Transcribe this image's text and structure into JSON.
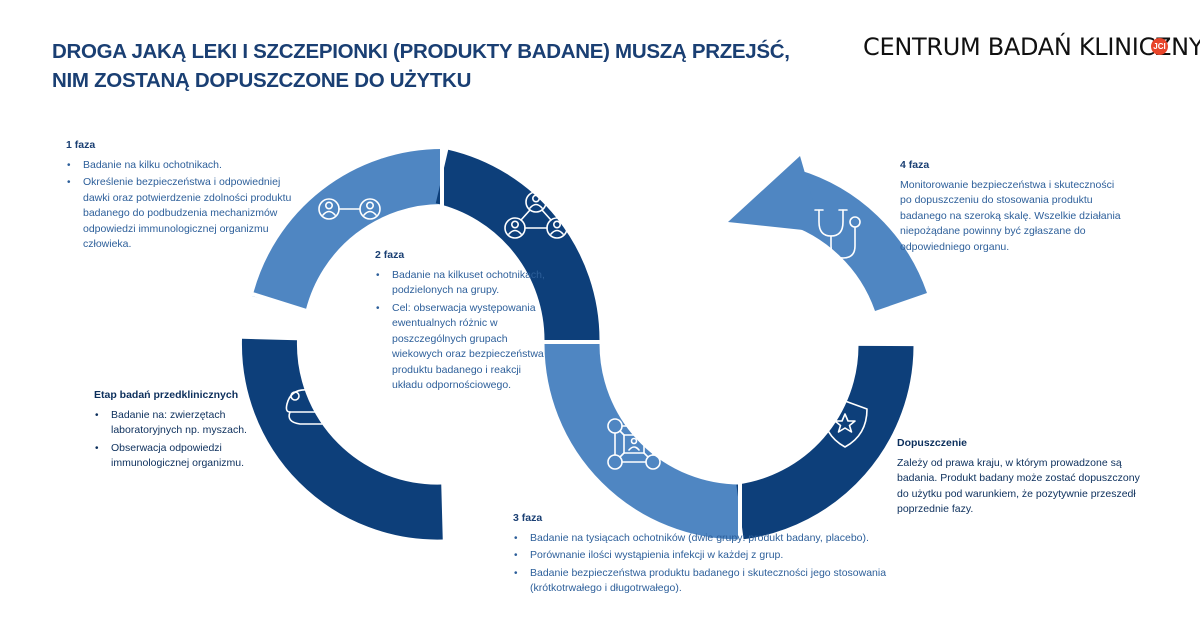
{
  "title": {
    "line1": "DROGA JAKĄ LEKI I SZCZEPIONKI (PRODUKTY BADANE) MUSZĄ PRZEJŚĆ,",
    "line2": "NIM ZOSTANĄ DOPUSZCZONE DO UŻYTKU"
  },
  "logo": {
    "text": "CENTRUM BADAŃ KLINICZNYCH",
    "badge": "JCI"
  },
  "colors": {
    "light_blue": "#4f86c2",
    "dark_blue": "#0d3f7a",
    "title": "#1a3f73",
    "logo_badge": "#e8452a"
  },
  "icons": [
    "lab-mouse-syringe-icon",
    "two-people-linked-icon",
    "three-people-network-icon",
    "people-grid-network-icon",
    "shield-star-icon",
    "stethoscope-icon"
  ],
  "stages": {
    "preclinical": {
      "heading": "Etap badań przedklinicznych",
      "items": [
        "Badanie na: zwierzętach laboratoryjnych np. myszach.",
        "Obserwacja odpowiedzi immunologicznej organizmu."
      ]
    },
    "phase1": {
      "heading": "1 faza",
      "items": [
        "Badanie na kilku ochotnikach.",
        "Określenie bezpieczeństwa i odpowiedniej dawki oraz potwierdzenie zdolności produktu badanego do podbudzenia mechanizmów odpowiedzi immunologicznej organizmu człowieka."
      ]
    },
    "phase2": {
      "heading": "2 faza",
      "items": [
        "Badanie na kilkuset ochotnikach, podzielonych na grupy.",
        "Cel: obserwacja występowania ewentualnych różnic w poszczególnych grupach wiekowych oraz bezpieczeństwa produktu badanego i reakcji układu odpornościowego."
      ]
    },
    "phase3": {
      "heading": "3 faza",
      "items": [
        "Badanie na tysiącach ochotników (dwie grupy: produkt badany, placebo).",
        "Porównanie ilości wystąpienia infekcji w każdej z grup.",
        "Badanie bezpieczeństwa produktu badanego i skuteczności jego stosowania (krótkotrwałego i długotrwałego)."
      ]
    },
    "approval": {
      "heading": "Dopuszczenie",
      "text": "Zależy od prawa kraju, w którym prowadzone są badania. Produkt badany może zostać dopuszczony do użytku pod warunkiem, że pozytywnie przeszedł poprzednie fazy."
    },
    "phase4": {
      "heading": "4 faza",
      "text": "Monitorowanie bezpieczeństwa i skuteczności po dopuszczeniu do stosowania produktu badanego na szeroką skalę. Wszelkie działania niepożądane powinny być zgłaszane do odpowiedniego organu."
    }
  }
}
